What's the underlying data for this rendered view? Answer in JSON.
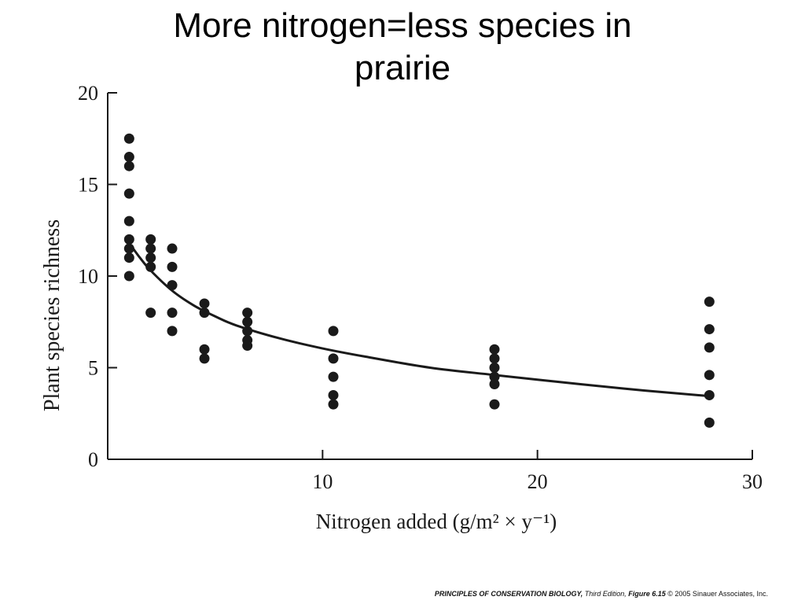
{
  "slide": {
    "title_line1": "More nitrogen=less species in",
    "title_line2": "prairie"
  },
  "credit": {
    "book": "PRINCIPLES OF CONSERVATION BIOLOGY,",
    "edition": " Third Edition,",
    "figure": " Figure 6.15",
    "copyright": " © 2005 Sinauer Associates, Inc."
  },
  "chart_data": {
    "type": "scatter",
    "title": "",
    "xlabel": "Nitrogen added (g/m² × y⁻¹)",
    "ylabel": "Plant species richness",
    "xlim": [
      0,
      30
    ],
    "ylim": [
      0,
      20
    ],
    "xticks": [
      10,
      20,
      30
    ],
    "yticks": [
      0,
      5,
      10,
      15,
      20
    ],
    "xtick_labels": [
      "10",
      "20",
      "30"
    ],
    "ytick_labels": [
      "0",
      "5",
      "10",
      "15",
      "20"
    ],
    "grid": false,
    "point_color": "#1a1a1a",
    "line_color": "#1a1a1a",
    "series": [
      {
        "points": [
          [
            1,
            17.5
          ],
          [
            1,
            16.5
          ],
          [
            1,
            16
          ],
          [
            1,
            14.5
          ],
          [
            1,
            13
          ],
          [
            1,
            12
          ],
          [
            1,
            11.5
          ],
          [
            1,
            11
          ],
          [
            1,
            10
          ],
          [
            2,
            12
          ],
          [
            2,
            11.5
          ],
          [
            2,
            11
          ],
          [
            2,
            10.5
          ],
          [
            2,
            8
          ],
          [
            3,
            11.5
          ],
          [
            3,
            10.5
          ],
          [
            3,
            9.5
          ],
          [
            3,
            8
          ],
          [
            3,
            7
          ],
          [
            4.5,
            8.5
          ],
          [
            4.5,
            8
          ],
          [
            4.5,
            6
          ],
          [
            4.5,
            5.5
          ],
          [
            6.5,
            8
          ],
          [
            6.5,
            7.5
          ],
          [
            6.5,
            7
          ],
          [
            6.5,
            6.5
          ],
          [
            6.5,
            6.2
          ],
          [
            10.5,
            7
          ],
          [
            10.5,
            5.5
          ],
          [
            10.5,
            4.5
          ],
          [
            10.5,
            3.5
          ],
          [
            10.5,
            3
          ],
          [
            18,
            6
          ],
          [
            18,
            5.5
          ],
          [
            18,
            5
          ],
          [
            18,
            4.5
          ],
          [
            18,
            4.1
          ],
          [
            18,
            3
          ],
          [
            28,
            8.6
          ],
          [
            28,
            7.1
          ],
          [
            28,
            6.1
          ],
          [
            28,
            4.6
          ],
          [
            28,
            3.5
          ],
          [
            28,
            2
          ]
        ]
      }
    ],
    "fit_curve": {
      "x": [
        1,
        1.5,
        2,
        3,
        4,
        5,
        6,
        8,
        10,
        12,
        15,
        18,
        22,
        25,
        28
      ],
      "y": [
        11.8,
        11,
        10.3,
        9.2,
        8.4,
        7.8,
        7.3,
        6.6,
        6.05,
        5.6,
        5.0,
        4.6,
        4.1,
        3.75,
        3.45
      ]
    }
  }
}
